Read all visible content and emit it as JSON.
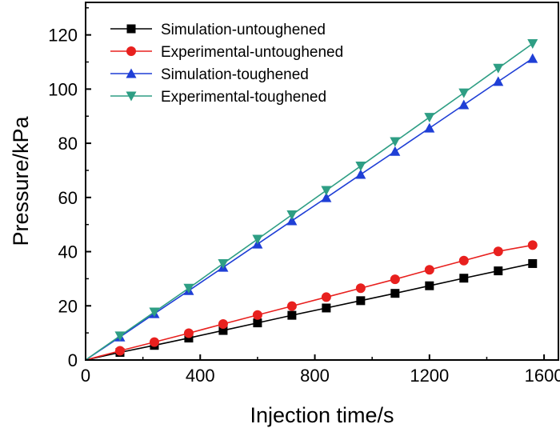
{
  "chart_data": {
    "type": "line",
    "title": "",
    "xlabel": "Injection time/s",
    "ylabel": "Pressure/kPa",
    "xlim": [
      0,
      1650
    ],
    "ylim": [
      0,
      132
    ],
    "xticks": [
      0,
      400,
      800,
      1200,
      1600
    ],
    "yticks": [
      0,
      20,
      40,
      60,
      80,
      100,
      120
    ],
    "legend_position": "top-left",
    "series": [
      {
        "name": "Simulation-untoughened",
        "color": "#000000",
        "marker": "square",
        "x": [
          0,
          120,
          240,
          360,
          480,
          600,
          720,
          840,
          960,
          1080,
          1200,
          1320,
          1440,
          1560
        ],
        "y": [
          0,
          2.8,
          5.4,
          8.1,
          10.9,
          13.7,
          16.5,
          19.2,
          21.9,
          24.6,
          27.4,
          30.2,
          32.9,
          35.6
        ]
      },
      {
        "name": "Experimental-untoughened",
        "color": "#e8201e",
        "marker": "circle",
        "x": [
          0,
          120,
          240,
          360,
          480,
          600,
          720,
          840,
          960,
          1080,
          1200,
          1320,
          1440,
          1560
        ],
        "y": [
          0,
          3.4,
          6.6,
          9.9,
          13.3,
          16.6,
          19.9,
          23.2,
          26.5,
          29.8,
          33.3,
          36.7,
          40.1,
          42.4
        ]
      },
      {
        "name": "Simulation-toughened",
        "color": "#1f3fd6",
        "marker": "triangle-up",
        "x": [
          0,
          120,
          240,
          360,
          480,
          600,
          720,
          840,
          960,
          1080,
          1200,
          1320,
          1440,
          1560
        ],
        "y": [
          0,
          8.5,
          17.1,
          25.6,
          34.2,
          42.8,
          51.4,
          59.9,
          68.5,
          77.0,
          85.6,
          94.2,
          102.8,
          111.3
        ]
      },
      {
        "name": "Experimental-toughened",
        "color": "#2e9e84",
        "marker": "triangle-down",
        "x": [
          0,
          120,
          240,
          360,
          480,
          600,
          720,
          840,
          960,
          1080,
          1200,
          1320,
          1440,
          1560
        ],
        "y": [
          0,
          8.9,
          17.7,
          26.5,
          35.6,
          44.6,
          53.6,
          62.6,
          71.6,
          80.6,
          89.6,
          98.6,
          107.7,
          116.8
        ]
      }
    ]
  }
}
